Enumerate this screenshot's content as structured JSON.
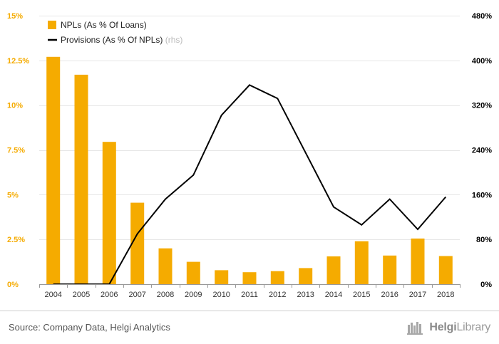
{
  "chart_data": {
    "type": "bar",
    "categories": [
      "2004",
      "2005",
      "2006",
      "2007",
      "2008",
      "2009",
      "2010",
      "2011",
      "2012",
      "2013",
      "2014",
      "2015",
      "2016",
      "2017",
      "2018"
    ],
    "series": [
      {
        "name": "NPLs (As % Of Loans)",
        "type": "bar",
        "axis": "left",
        "color": "#f5ab00",
        "values": [
          12.7,
          11.7,
          7.95,
          4.55,
          2.0,
          1.25,
          0.78,
          0.67,
          0.73,
          0.9,
          1.55,
          2.4,
          1.6,
          2.55,
          1.57
        ]
      },
      {
        "name": "Provisions (As % Of NPLs)",
        "legend_suffix": "(rhs)",
        "type": "line",
        "axis": "right",
        "color": "#000000",
        "values": [
          0,
          0,
          0,
          90,
          152,
          195,
          302,
          356,
          332,
          235,
          138,
          106,
          152,
          98,
          156
        ]
      }
    ],
    "left_axis": {
      "ylim": [
        0,
        15
      ],
      "ticks": [
        0,
        2.5,
        5,
        7.5,
        10,
        12.5,
        15
      ],
      "tick_labels": [
        "0%",
        "2.5%",
        "5%",
        "7.5%",
        "10%",
        "12.5%",
        "15%"
      ],
      "color": "#f5ab00"
    },
    "right_axis": {
      "ylim": [
        0,
        480
      ],
      "ticks": [
        0,
        80,
        160,
        240,
        320,
        400,
        480
      ],
      "tick_labels": [
        "0%",
        "80%",
        "160%",
        "240%",
        "320%",
        "400%",
        "480%"
      ],
      "color": "#000000"
    },
    "grid": true,
    "legend_position": "top-left"
  },
  "footer": {
    "source": "Source: Company Data, Helgi Analytics",
    "logo_name": "helgi-library-logo",
    "logo_text_a": "Helgi",
    "logo_text_b": "Library"
  }
}
